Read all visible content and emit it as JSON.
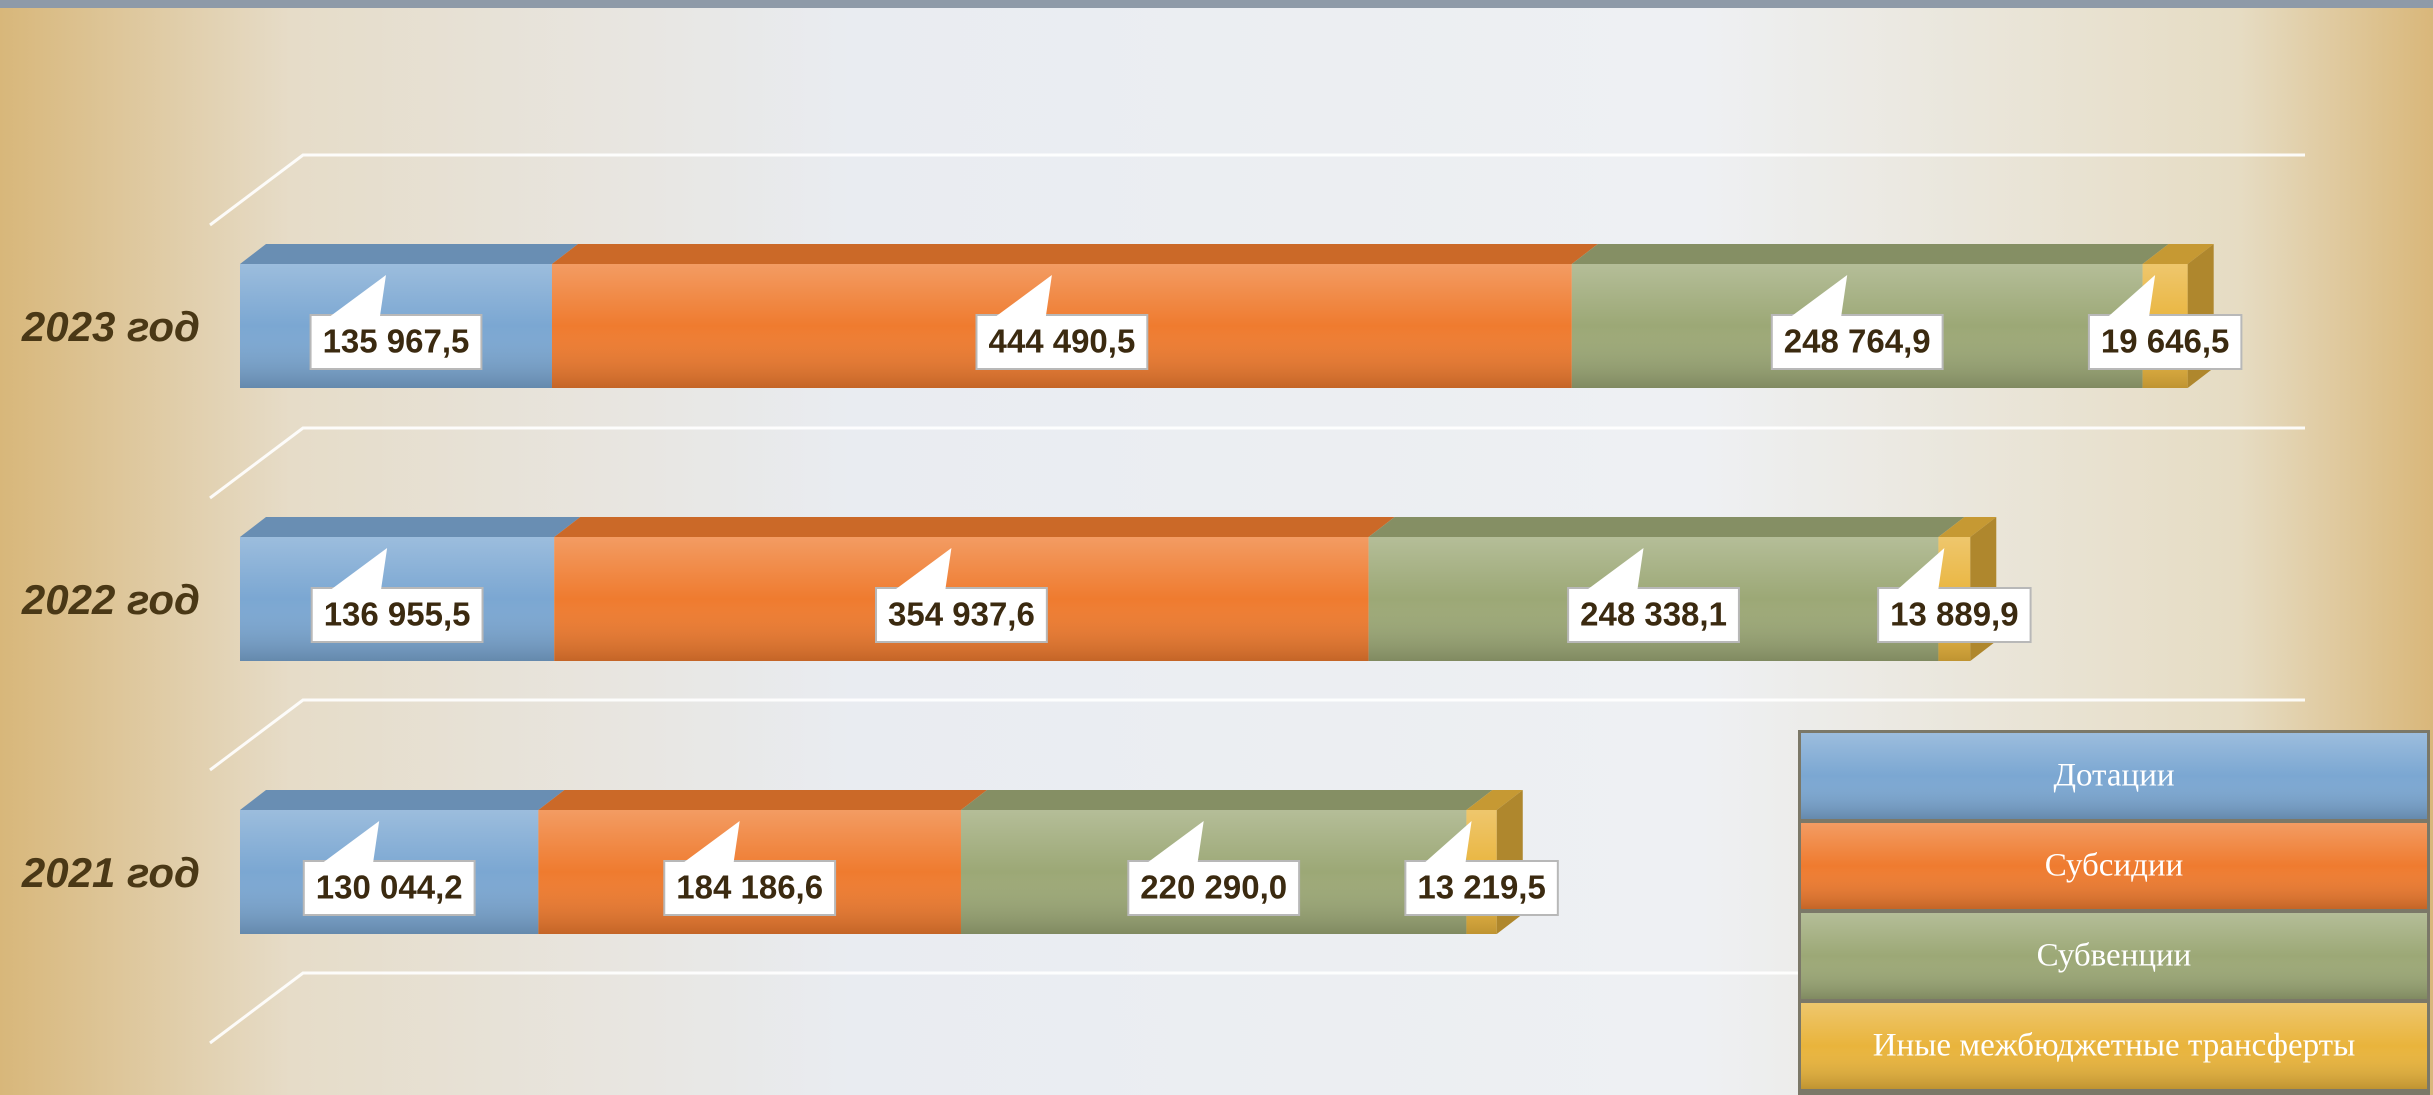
{
  "chart_data": {
    "type": "stacked-bar-horizontal",
    "categories": [
      "2023 год",
      "2022 год",
      "2021 год"
    ],
    "series": [
      {
        "name": "Дотации",
        "color": "#7ba7d2",
        "values": [
          135967.5,
          136955.5,
          130044.2
        ],
        "value_labels": [
          "135 967,5",
          "136 955,5",
          "130 044,2"
        ]
      },
      {
        "name": "Субсидии",
        "color": "#ef7b2f",
        "values": [
          444490.5,
          354937.6,
          184186.6
        ],
        "value_labels": [
          "444 490,5",
          "354 937,6",
          "184 186,6"
        ]
      },
      {
        "name": "Субвенции",
        "color": "#9ca876",
        "values": [
          248764.9,
          248338.1,
          220290.0
        ],
        "value_labels": [
          "248 764,9",
          "248 338,1",
          "220 290,0"
        ]
      },
      {
        "name": "Иные межбюджетные трансферты",
        "color": "#e9b43c",
        "values": [
          19646.5,
          13889.9,
          13219.5
        ],
        "value_labels": [
          "19 646,5",
          "13 889,9",
          "13 219,5"
        ]
      }
    ],
    "xlim": [
      0,
      900000
    ],
    "legend": "bottom-right"
  }
}
